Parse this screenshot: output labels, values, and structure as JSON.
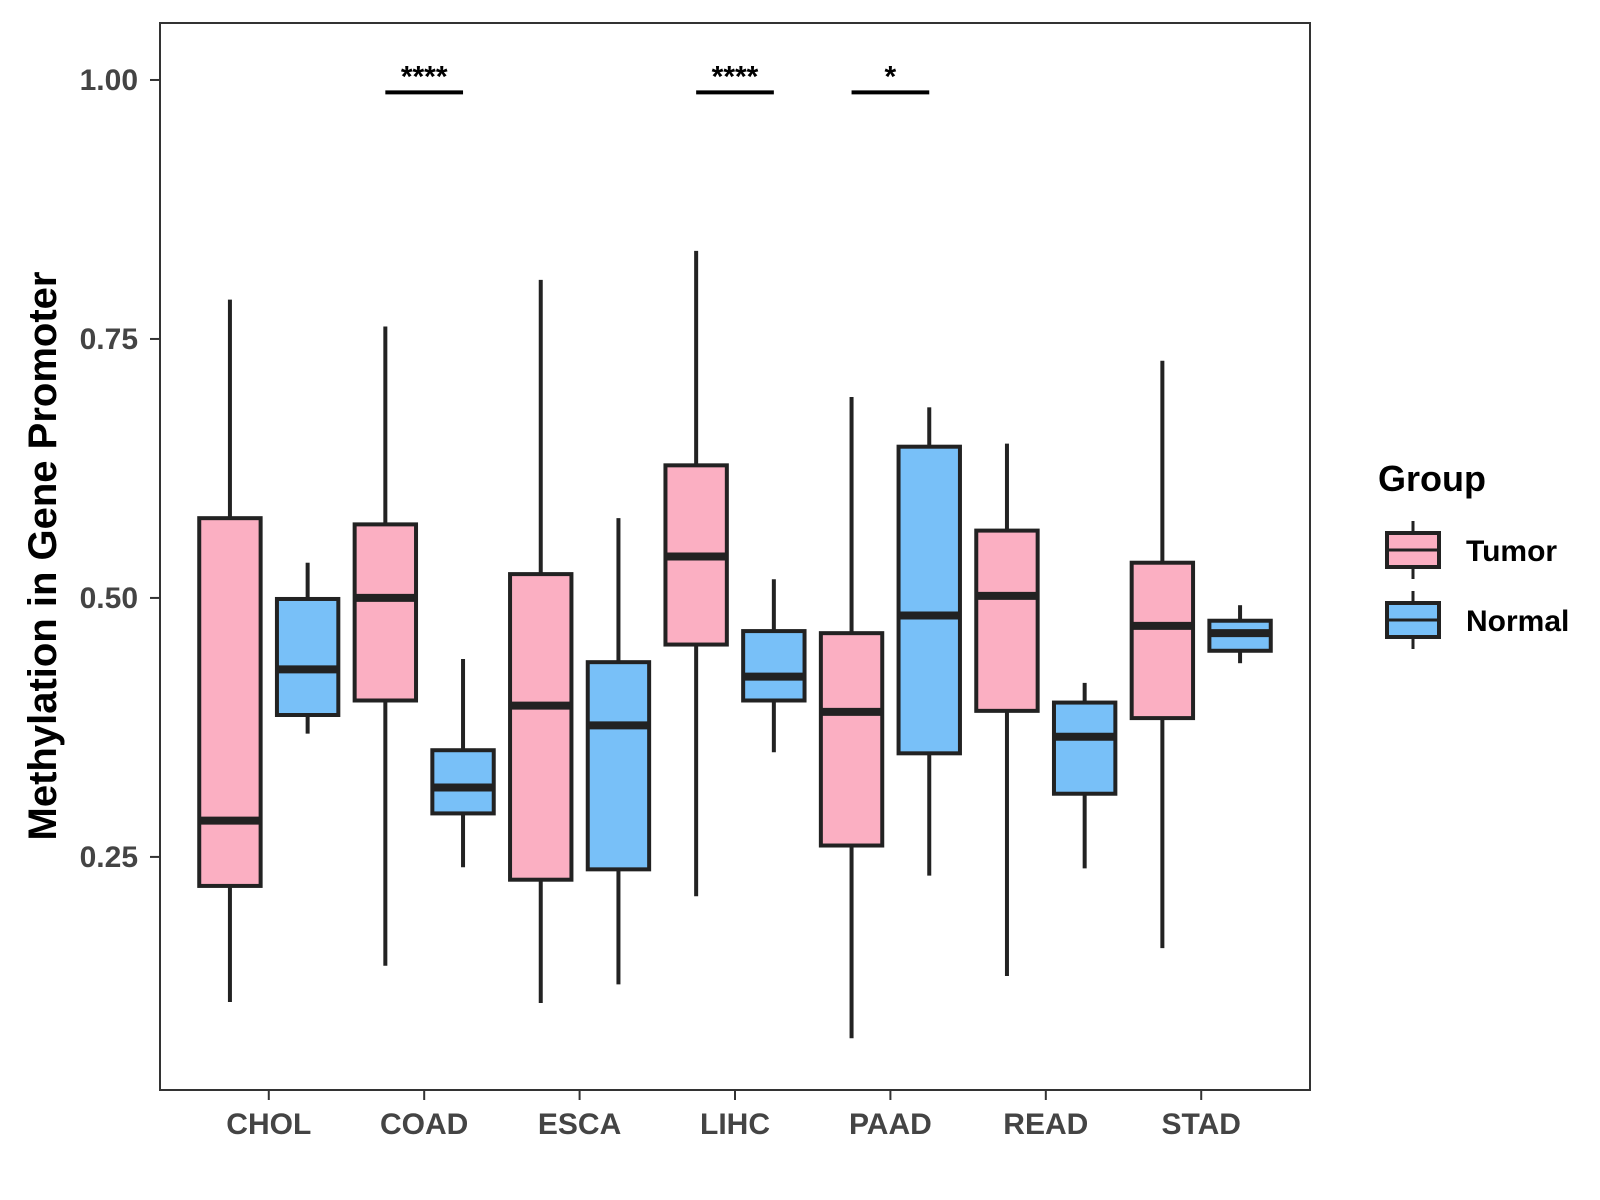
{
  "chart_data": {
    "type": "boxplot",
    "title": "",
    "xlabel": "",
    "ylabel": "Methylation in Gene Promoter",
    "ylim": [
      0.025,
      1.055
    ],
    "yticks": [
      0.25,
      0.5,
      0.75,
      1.0
    ],
    "ytick_labels": [
      "0.25",
      "0.50",
      "0.75",
      "1.00"
    ],
    "categories": [
      "CHOL",
      "COAD",
      "ESCA",
      "LIHC",
      "PAAD",
      "READ",
      "STAD"
    ],
    "grid": false,
    "legend": {
      "title": "Group",
      "placement": "right",
      "entries": [
        {
          "name": "Tumor",
          "color": "#FBAFC2"
        },
        {
          "name": "Normal",
          "color": "#78C0F8"
        }
      ]
    },
    "series": [
      {
        "name": "Tumor",
        "color": "#FBAFC2",
        "boxes": [
          {
            "min": 0.11,
            "q1": 0.222,
            "median": 0.285,
            "q3": 0.577,
            "max": 0.788
          },
          {
            "min": 0.145,
            "q1": 0.401,
            "median": 0.5,
            "q3": 0.571,
            "max": 0.762
          },
          {
            "min": 0.109,
            "q1": 0.228,
            "median": 0.396,
            "q3": 0.523,
            "max": 0.807
          },
          {
            "min": 0.212,
            "q1": 0.455,
            "median": 0.54,
            "q3": 0.628,
            "max": 0.835
          },
          {
            "min": 0.075,
            "q1": 0.261,
            "median": 0.39,
            "q3": 0.466,
            "max": 0.694
          },
          {
            "min": 0.135,
            "q1": 0.391,
            "median": 0.502,
            "q3": 0.565,
            "max": 0.649
          },
          {
            "min": 0.162,
            "q1": 0.384,
            "median": 0.473,
            "q3": 0.534,
            "max": 0.729
          }
        ]
      },
      {
        "name": "Normal",
        "color": "#78C0F8",
        "boxes": [
          {
            "min": 0.369,
            "q1": 0.387,
            "median": 0.431,
            "q3": 0.499,
            "max": 0.534
          },
          {
            "min": 0.24,
            "q1": 0.292,
            "median": 0.317,
            "q3": 0.353,
            "max": 0.441
          },
          {
            "min": 0.127,
            "q1": 0.238,
            "median": 0.377,
            "q3": 0.438,
            "max": 0.577
          },
          {
            "min": 0.351,
            "q1": 0.401,
            "median": 0.424,
            "q3": 0.468,
            "max": 0.518
          },
          {
            "min": 0.232,
            "q1": 0.35,
            "median": 0.483,
            "q3": 0.646,
            "max": 0.684
          },
          {
            "min": 0.239,
            "q1": 0.311,
            "median": 0.366,
            "q3": 0.399,
            "max": 0.418
          },
          {
            "min": 0.437,
            "q1": 0.449,
            "median": 0.466,
            "q3": 0.478,
            "max": 0.493
          }
        ]
      }
    ],
    "annotations": [
      {
        "category": "COAD",
        "label": "****",
        "y": 0.988
      },
      {
        "category": "LIHC",
        "label": "****",
        "y": 0.988
      },
      {
        "category": "PAAD",
        "label": "*",
        "y": 0.988
      }
    ]
  }
}
